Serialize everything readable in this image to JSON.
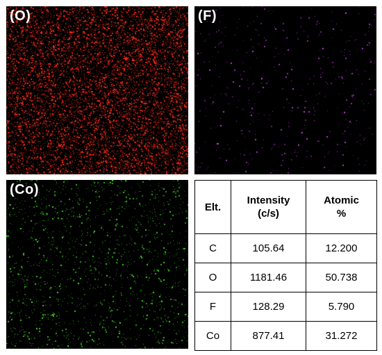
{
  "panels": [
    {
      "label": "(O)",
      "dot_color": "#ff2a1a",
      "density": "high"
    },
    {
      "label": "(F)",
      "dot_color": "#d040f0",
      "density": "low"
    },
    {
      "label": "(Co)",
      "dot_color": "#3ee020",
      "density": "medium"
    }
  ],
  "table": {
    "headers": {
      "element": "Elt.",
      "intensity_line1": "Intensity",
      "intensity_line2": "(c/s)",
      "atomic_line1": "Atomic",
      "atomic_line2": "%"
    },
    "rows": [
      {
        "element": "C",
        "intensity": "105.64",
        "atomic": "12.200"
      },
      {
        "element": "O",
        "intensity": "1181.46",
        "atomic": "50.738"
      },
      {
        "element": "F",
        "intensity": "128.29",
        "atomic": "5.790"
      },
      {
        "element": "Co",
        "intensity": "877.41",
        "atomic": "31.272"
      }
    ]
  }
}
